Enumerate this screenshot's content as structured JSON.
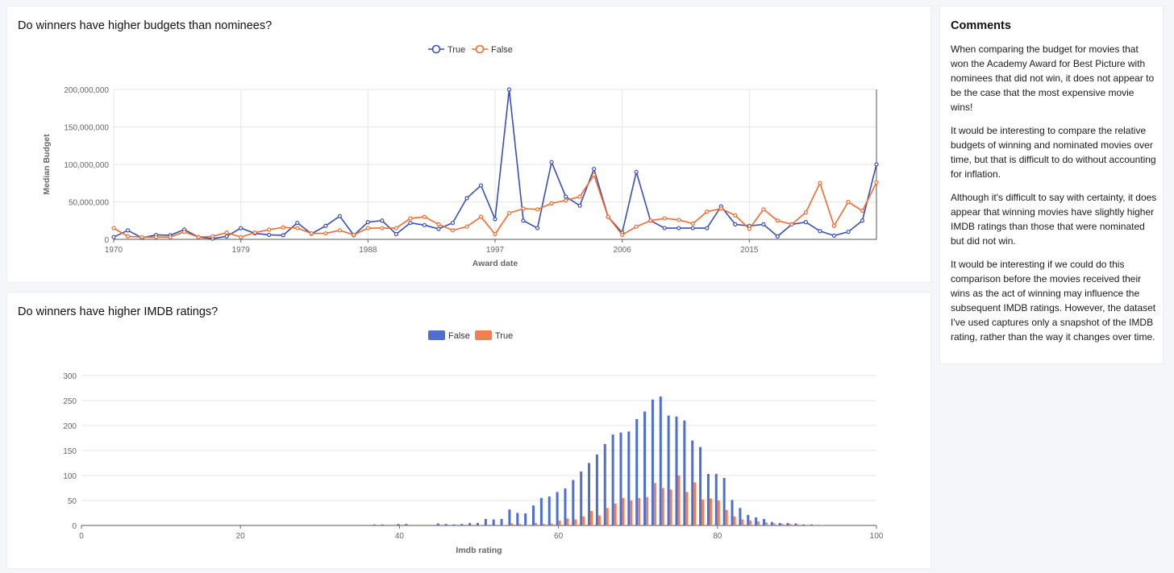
{
  "chart_budget": {
    "title": "Do winners have higher budgets than nominees?",
    "chart_data": {
      "type": "line",
      "title": "Do winners have higher budgets than nominees?",
      "xlabel": "Award date",
      "ylabel": "Median Budget",
      "x_ticks": [
        "1970",
        "1979",
        "1988",
        "1997",
        "2006",
        "2015"
      ],
      "y_ticks": [
        "0",
        "50,000,000",
        "100,000,000",
        "150,000,000",
        "200,000,000"
      ],
      "ylim": [
        0,
        200000000
      ],
      "xlim": [
        1970,
        2024
      ],
      "grid": true,
      "legend_position": "top-center",
      "x": [
        1970,
        1971,
        1972,
        1973,
        1974,
        1975,
        1976,
        1977,
        1978,
        1979,
        1980,
        1981,
        1982,
        1983,
        1984,
        1985,
        1986,
        1987,
        1988,
        1989,
        1990,
        1991,
        1992,
        1993,
        1994,
        1995,
        1996,
        1997,
        1998,
        1999,
        2000,
        2001,
        2002,
        2003,
        2004,
        2005,
        2006,
        2007,
        2008,
        2009,
        2010,
        2011,
        2012,
        2013,
        2014,
        2015,
        2016,
        2017,
        2018,
        2019,
        2020,
        2021,
        2022,
        2023,
        2024
      ],
      "series": [
        {
          "name": "True",
          "color": "#3a4fb4",
          "values": [
            3000000,
            12000000,
            2000000,
            6000000,
            5500000,
            13000000,
            3000000,
            1000000,
            4000000,
            15000000,
            8000000,
            6000000,
            5500000,
            22000000,
            7500000,
            18000000,
            31000000,
            5500000,
            23000000,
            25000000,
            7000000,
            22000000,
            19000000,
            14000000,
            22000000,
            55000000,
            72000000,
            27000000,
            200000000,
            25000000,
            15000000,
            103000000,
            57000000,
            45000000,
            94000000,
            30000000,
            9000000,
            90000000,
            25000000,
            15000000,
            15000000,
            15000000,
            15000000,
            44000000,
            20000000,
            18000000,
            20000000,
            4000000,
            20000000,
            23000000,
            11000000,
            5000000,
            10000000,
            25000000,
            100000000
          ]
        },
        {
          "name": "False",
          "color": "#f26a2e",
          "values": [
            15000000,
            4000000,
            3000000,
            3000000,
            3000000,
            10000000,
            3000000,
            4000000,
            9000000,
            3000000,
            9000000,
            13000000,
            16000000,
            15000000,
            8000000,
            8000000,
            12000000,
            6000000,
            15000000,
            15000000,
            15000000,
            28000000,
            30000000,
            20000000,
            12000000,
            17000000,
            30000000,
            7000000,
            35000000,
            41000000,
            40000000,
            48000000,
            52000000,
            57000000,
            86000000,
            30000000,
            6000000,
            17000000,
            25000000,
            28000000,
            26000000,
            21000000,
            37000000,
            41000000,
            32000000,
            14000000,
            40000000,
            25000000,
            20000000,
            36000000,
            75000000,
            18000000,
            50000000,
            38000000,
            76000000
          ]
        }
      ]
    }
  },
  "chart_imdb": {
    "title": "Do winners have higher IMDB ratings?",
    "chart_data": {
      "type": "bar",
      "title": "Do winners have higher IMDB ratings?",
      "xlabel": "Imdb rating",
      "ylabel": "",
      "x_ticks": [
        "0",
        "20",
        "40",
        "60",
        "80",
        "100"
      ],
      "y_ticks": [
        "0",
        "50",
        "100",
        "150",
        "200",
        "250",
        "300"
      ],
      "xlim": [
        0,
        100
      ],
      "ylim": [
        0,
        300
      ],
      "grid": true,
      "legend_position": "top-center",
      "x": [
        37,
        38,
        39,
        40,
        41,
        42,
        43,
        44,
        45,
        46,
        47,
        48,
        49,
        50,
        51,
        52,
        53,
        54,
        55,
        56,
        57,
        58,
        59,
        60,
        61,
        62,
        63,
        64,
        65,
        66,
        67,
        68,
        69,
        70,
        71,
        72,
        73,
        74,
        75,
        76,
        77,
        78,
        79,
        80,
        81,
        82,
        83,
        84,
        85,
        86,
        87,
        88,
        89,
        90,
        91,
        92,
        93
      ],
      "series": [
        {
          "name": "False",
          "color": "#4e6fcf",
          "values": [
            2,
            2,
            1,
            3,
            3,
            1,
            1,
            1,
            4,
            3,
            2,
            3,
            5,
            5,
            13,
            12,
            13,
            32,
            25,
            24,
            40,
            55,
            58,
            67,
            74,
            91,
            108,
            125,
            142,
            163,
            182,
            186,
            188,
            213,
            228,
            252,
            258,
            220,
            218,
            210,
            170,
            157,
            103,
            103,
            95,
            51,
            35,
            21,
            16,
            13,
            7,
            5,
            5,
            4,
            2,
            2,
            1
          ]
        },
        {
          "name": "True",
          "color": "#f47f4e",
          "values": [
            0,
            0,
            0,
            0,
            0,
            0,
            0,
            0,
            0,
            0,
            0,
            0,
            0,
            1,
            0,
            0,
            1,
            4,
            3,
            1,
            5,
            3,
            4,
            10,
            14,
            12,
            18,
            29,
            20,
            35,
            44,
            55,
            50,
            55,
            57,
            85,
            75,
            72,
            100,
            67,
            86,
            52,
            54,
            50,
            31,
            18,
            12,
            10,
            8,
            6,
            4,
            3,
            3,
            2,
            1,
            1,
            1
          ]
        }
      ]
    }
  },
  "comments": {
    "title": "Comments",
    "paragraphs": [
      "When comparing the budget for movies that won the Academy Award for Best Picture with nominees that did not win, it does not appear to be the case that the most expensive movie wins!",
      "It would be interesting to compare the relative budgets of winning and nominated movies over time, but that is difficult to do without accounting for inflation.",
      "Although it's difficult to say with certainty, it does appear that winning movies have slightly higher IMDB ratings than those that were nominated but did not win.",
      "It would be interesting if we could do this comparison before the movies received their wins as the act of winning may influence the subsequent IMDB ratings. However, the dataset I've used captures only a snapshot of the IMDB rating, rather than the way it changes over time."
    ]
  }
}
